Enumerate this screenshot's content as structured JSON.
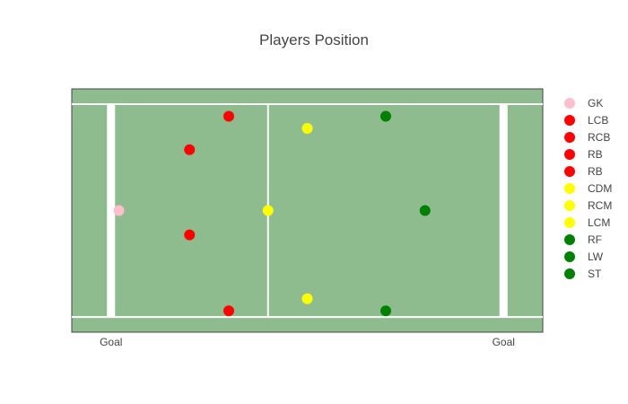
{
  "chart_data": {
    "type": "scatter",
    "title": "Players Position",
    "xlabel": "",
    "ylabel": "",
    "xlim": [
      0,
      120
    ],
    "ylim": [
      0,
      80
    ],
    "xticks": [
      {
        "value": 10,
        "label": "Goal"
      },
      {
        "value": 110,
        "label": "Goal"
      }
    ],
    "grid": false,
    "legend_position": "right",
    "pitch": {
      "background": "#8fbc8f",
      "line_color": "#ffffff",
      "touchlines_y": [
        5,
        75
      ],
      "goal_lines_x": [
        10,
        110
      ],
      "center_line_x": 50
    },
    "series": [
      {
        "name": "GK",
        "color": "#ffc0cb",
        "x": 12,
        "y": 40
      },
      {
        "name": "LCB",
        "color": "#ff0000",
        "x": 40,
        "y": 71
      },
      {
        "name": "RCB",
        "color": "#ff0000",
        "x": 30,
        "y": 60
      },
      {
        "name": "RB",
        "color": "#ff0000",
        "x": 30,
        "y": 32
      },
      {
        "name": "RB",
        "color": "#ff0000",
        "x": 40,
        "y": 7
      },
      {
        "name": "CDM",
        "color": "#ffff00",
        "x": 50,
        "y": 40
      },
      {
        "name": "RCM",
        "color": "#ffff00",
        "x": 60,
        "y": 67
      },
      {
        "name": "LCM",
        "color": "#ffff00",
        "x": 60,
        "y": 11
      },
      {
        "name": "RF",
        "color": "#008000",
        "x": 80,
        "y": 71
      },
      {
        "name": "LW",
        "color": "#008000",
        "x": 80,
        "y": 7
      },
      {
        "name": "ST",
        "color": "#008000",
        "x": 90,
        "y": 40
      }
    ]
  }
}
